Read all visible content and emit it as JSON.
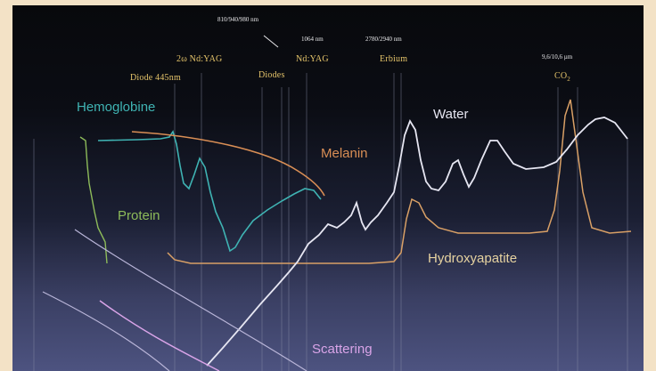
{
  "wavelength_labels": {
    "diodes_range": "810/940/980 nm",
    "ndyag": "1064 nm",
    "erbium": "2780/2940 nm",
    "co2": "9,6/10,6 µm"
  },
  "laser_labels": {
    "diode445": "Diode 445nm",
    "nd_yag_2w": "2ω Nd:YAG",
    "diodes": "Diodes",
    "ndyag": "Nd:YAG",
    "erbium": "Erbium",
    "co2_base": "CO",
    "co2_sub": "2"
  },
  "absorbers": {
    "hemoglobine": "Hemoglobine",
    "melanin": "Melanin",
    "water": "Water",
    "protein": "Protein",
    "hydroxyapatite": "Hydroxyapatite",
    "scattering": "Scattering"
  },
  "colors": {
    "hemoglobine": "#3fb3b3",
    "melanin": "#d98e55",
    "water": "#e6e6f2",
    "protein": "#8dbb5a",
    "hydroxyapatite": "#e6d2a0",
    "scattering": "#d9a4e8",
    "laser_text": "#e5c46a",
    "background_top": "#08090c",
    "background_bottom": "#4d5380"
  }
}
